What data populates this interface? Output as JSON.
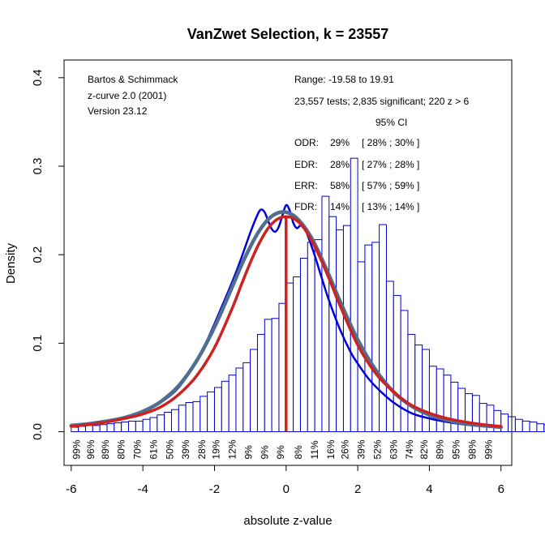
{
  "chart_data": {
    "type": "histogram",
    "title": "VanZwet Selection, k = 23557",
    "xlabel": "absolute z-value",
    "ylabel": "Density",
    "xlim": [
      -6.2,
      6.3
    ],
    "ylim": [
      -0.038,
      0.42
    ],
    "x_ticks": [
      -6,
      -4,
      -2,
      0,
      2,
      4,
      6
    ],
    "x_tick_labels": [
      "-6",
      "-4",
      "-2",
      "0",
      "2",
      "4",
      "6"
    ],
    "y_ticks": [
      0.0,
      0.1,
      0.2,
      0.3,
      0.4
    ],
    "y_tick_labels": [
      "0.0",
      "0.1",
      "0.2",
      "0.3",
      "0.4"
    ],
    "bins": {
      "start": -6.0,
      "width": 0.2,
      "heights": [
        0.005,
        0.006,
        0.007,
        0.007,
        0.008,
        0.009,
        0.01,
        0.011,
        0.012,
        0.012,
        0.014,
        0.016,
        0.019,
        0.022,
        0.025,
        0.03,
        0.033,
        0.034,
        0.04,
        0.045,
        0.05,
        0.057,
        0.064,
        0.072,
        0.078,
        0.093,
        0.11,
        0.127,
        0.128,
        0.145,
        0.168,
        0.175,
        0.196,
        0.214,
        0.217,
        0.266,
        0.243,
        0.228,
        0.233,
        0.309,
        0.192,
        0.211,
        0.214,
        0.234,
        0.17,
        0.154,
        0.137,
        0.11,
        0.098,
        0.093,
        0.074,
        0.071,
        0.064,
        0.056,
        0.049,
        0.043,
        0.041,
        0.032,
        0.03,
        0.024,
        0.02,
        0.017,
        0.014,
        0.012,
        0.011,
        0.009,
        0.008,
        0.007,
        0.006,
        0.006
      ]
    },
    "percent_labels": {
      "x": [
        -5.85,
        -5.45,
        -5.05,
        -4.6,
        -4.15,
        -3.7,
        -3.25,
        -2.8,
        -2.35,
        -1.95,
        -1.5,
        -1.05,
        -0.6,
        -0.15,
        0.35,
        0.8,
        1.25,
        1.65,
        2.1,
        2.55,
        3.0,
        3.45,
        3.85,
        4.3,
        4.75,
        5.2,
        5.65
      ],
      "labels": [
        "99%",
        "96%",
        "89%",
        "80%",
        "70%",
        "61%",
        "50%",
        "39%",
        "28%",
        "19%",
        "12%",
        "9%",
        "9%",
        "9%",
        "8%",
        "11%",
        "16%",
        "26%",
        "39%",
        "52%",
        "63%",
        "74%",
        "82%",
        "89%",
        "95%",
        "98%",
        "99%"
      ]
    },
    "series": [
      {
        "name": "kernel density",
        "color": "#0000dd",
        "x": [
          -6,
          -5.5,
          -5,
          -4.5,
          -4,
          -3.5,
          -3,
          -2.5,
          -2.2,
          -2,
          -1.8,
          -1.6,
          -1.4,
          -1.2,
          -1.0,
          -0.8,
          -0.7,
          -0.6,
          -0.5,
          -0.4,
          -0.3,
          -0.2,
          -0.1,
          0,
          0.1,
          0.2,
          0.3,
          0.4,
          0.5,
          0.6,
          0.8,
          1.0,
          1.2,
          1.5,
          1.8,
          2.0,
          2.3,
          2.6,
          3.0,
          3.5,
          4.0,
          4.5,
          5.0,
          5.5,
          6.0
        ],
        "y": [
          0.006,
          0.009,
          0.012,
          0.016,
          0.022,
          0.033,
          0.05,
          0.08,
          0.104,
          0.122,
          0.141,
          0.16,
          0.18,
          0.202,
          0.225,
          0.245,
          0.251,
          0.248,
          0.238,
          0.229,
          0.226,
          0.232,
          0.245,
          0.256,
          0.25,
          0.236,
          0.23,
          0.233,
          0.231,
          0.222,
          0.199,
          0.173,
          0.148,
          0.116,
          0.09,
          0.077,
          0.06,
          0.047,
          0.033,
          0.021,
          0.015,
          0.011,
          0.008,
          0.006,
          0.005
        ]
      },
      {
        "name": "fitted model",
        "color": "#4f6f8f",
        "x": [
          -6,
          -5.5,
          -5,
          -4.5,
          -4,
          -3.5,
          -3,
          -2.5,
          -2,
          -1.5,
          -1.25,
          -1,
          -0.75,
          -0.5,
          -0.25,
          0,
          0.25,
          0.5,
          0.75,
          1,
          1.25,
          1.5,
          2,
          2.5,
          3,
          3.5,
          4,
          4.5,
          5,
          5.5,
          6
        ],
        "y": [
          0.007,
          0.009,
          0.012,
          0.016,
          0.023,
          0.034,
          0.052,
          0.08,
          0.118,
          0.164,
          0.188,
          0.209,
          0.227,
          0.24,
          0.247,
          0.248,
          0.243,
          0.232,
          0.216,
          0.195,
          0.172,
          0.148,
          0.104,
          0.07,
          0.045,
          0.029,
          0.019,
          0.013,
          0.009,
          0.007,
          0.005
        ]
      },
      {
        "name": "selection model",
        "color": "#cc2222",
        "x": [
          -6,
          -5.5,
          -5,
          -4.5,
          -4,
          -3.5,
          -3,
          -2.5,
          -2,
          -1.5,
          -1.25,
          -1,
          -0.75,
          -0.5,
          -0.25,
          0,
          0.25,
          0.5,
          0.75,
          1,
          1.25,
          1.5,
          2,
          2.5,
          3,
          3.5,
          4,
          4.5,
          5,
          5.5,
          6
        ],
        "y": [
          0.006,
          0.008,
          0.011,
          0.015,
          0.02,
          0.028,
          0.042,
          0.063,
          0.095,
          0.14,
          0.166,
          0.191,
          0.213,
          0.23,
          0.24,
          0.243,
          0.24,
          0.23,
          0.213,
          0.192,
          0.168,
          0.143,
          0.098,
          0.066,
          0.045,
          0.03,
          0.021,
          0.015,
          0.011,
          0.008,
          0.006
        ]
      }
    ],
    "vertical_line": {
      "x": 0.0,
      "color": "#cc2222"
    }
  },
  "credits": {
    "authors": "Bartos & Schimmack",
    "software": "z-curve 2.0 (2001)",
    "version": "Version 23.12"
  },
  "stats": {
    "range": "Range: -19.58 to 19.91",
    "tests": "23,557 tests; 2,835 significant; 220 z > 6",
    "ci_header": "95% CI",
    "rows": [
      {
        "label": "ODR:",
        "value": "29%",
        "ci": "[ 28% ; 30% ]"
      },
      {
        "label": "EDR:",
        "value": "28%",
        "ci": "[ 27% ; 28% ]"
      },
      {
        "label": "ERR:",
        "value": "58%",
        "ci": "[ 57% ; 59% ]"
      },
      {
        "label": "FDR:",
        "value": "14%",
        "ci": "[ 13% ; 14% ]"
      }
    ]
  }
}
